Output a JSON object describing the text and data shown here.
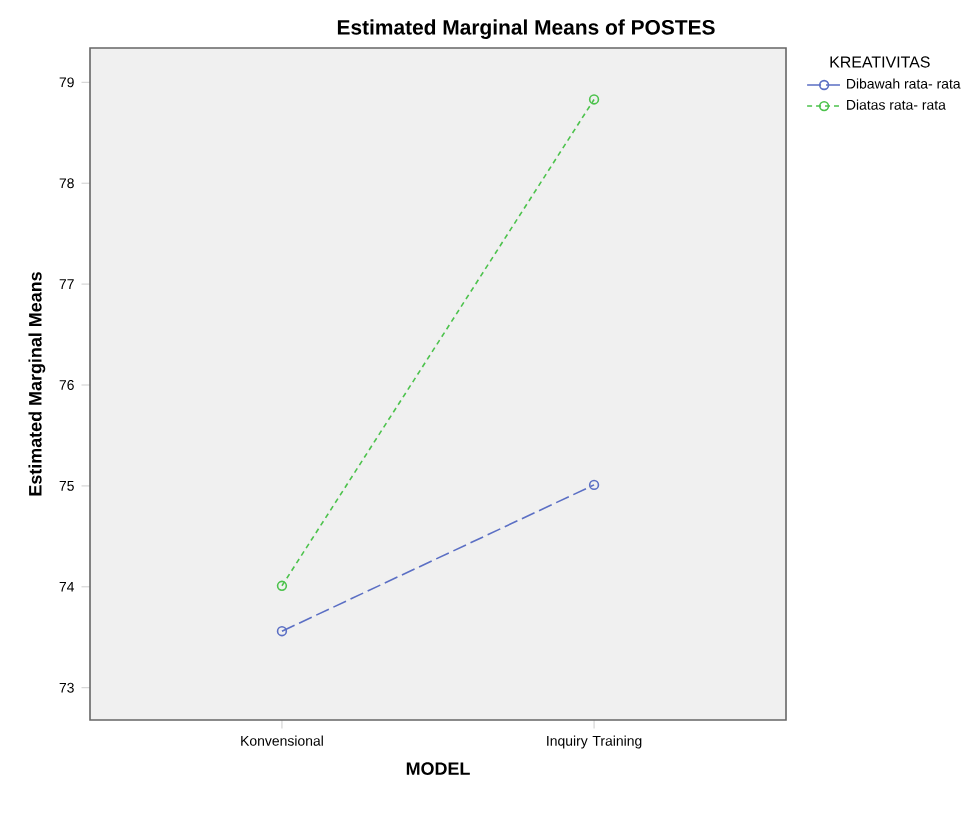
{
  "chart_data": {
    "type": "line",
    "title": "Estimated Marginal Means of POSTES",
    "xlabel": "MODEL",
    "ylabel": "Estimated Marginal Means",
    "legend_title": "KREATIVITAS",
    "categories": [
      "Konvensional",
      "Inquiry Training"
    ],
    "series": [
      {
        "name": "Dibawah rata- rata",
        "color": "#5b6fc4",
        "values": [
          73.56,
          75.01
        ],
        "line_style": "dashed"
      },
      {
        "name": "Diatas rata- rata",
        "color": "#4cc24c",
        "values": [
          74.01,
          78.83
        ],
        "line_style": "dotted"
      }
    ],
    "ylim": [
      72.68,
      79.34
    ],
    "yticks": [
      73,
      74,
      75,
      76,
      77,
      78,
      79
    ],
    "marker": "circle",
    "legend": "top right",
    "grid": false
  }
}
